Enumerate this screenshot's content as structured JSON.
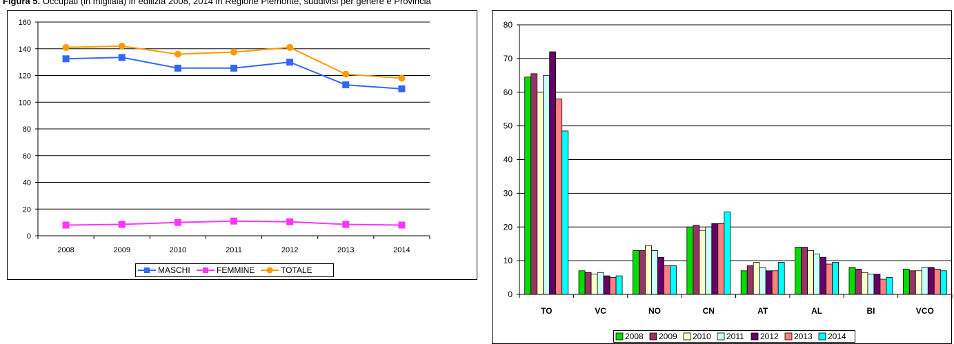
{
  "caption": {
    "label": "Figura 5.",
    "text": "Occupati (in migliaia) in edilizia 2008, 2014 in Regione Piemonte, suddivisi per genere e Provincia"
  },
  "chart_data": [
    {
      "type": "line",
      "title": "",
      "x": [
        "2008",
        "2009",
        "2010",
        "2011",
        "2012",
        "2013",
        "2014"
      ],
      "ylim": [
        0,
        160
      ],
      "yticks": [
        "0",
        "20",
        "40",
        "60",
        "80",
        "100",
        "120",
        "140",
        "160"
      ],
      "grid": true,
      "legend": "bottom",
      "series": [
        {
          "name": "MASCHI",
          "color": "#3366ff",
          "marker": "square",
          "values": [
            132.5,
            133.5,
            125.5,
            125.5,
            130,
            113,
            110
          ]
        },
        {
          "name": "FEMMINE",
          "color": "#ff33ff",
          "marker": "square",
          "values": [
            8,
            8.5,
            10,
            11,
            10.5,
            8.5,
            8
          ]
        },
        {
          "name": "TOTALE",
          "color": "#ff9900",
          "marker": "circle",
          "values": [
            141,
            142,
            136,
            137.5,
            141,
            121,
            118
          ]
        }
      ]
    },
    {
      "type": "bar",
      "title": "",
      "categories": [
        "TO",
        "VC",
        "NO",
        "CN",
        "AT",
        "AL",
        "BI",
        "VCO"
      ],
      "ylim": [
        0,
        80
      ],
      "yticks": [
        "0",
        "10",
        "20",
        "30",
        "40",
        "50",
        "60",
        "70",
        "80"
      ],
      "grid": true,
      "legend": "bottom",
      "series": [
        {
          "name": "2008",
          "color": "#00dd00",
          "values": [
            64.5,
            7,
            13,
            20,
            7,
            14,
            8,
            7.5
          ]
        },
        {
          "name": "2009",
          "color": "#993366",
          "values": [
            65.5,
            6.5,
            13,
            20.5,
            8.5,
            14,
            7.5,
            7
          ]
        },
        {
          "name": "2010",
          "color": "#ffffcc",
          "values": [
            60,
            6,
            14.5,
            19,
            9.5,
            13,
            6.5,
            7
          ]
        },
        {
          "name": "2011",
          "color": "#ccffff",
          "values": [
            65,
            6.5,
            13,
            20,
            8,
            12,
            6,
            8
          ]
        },
        {
          "name": "2012",
          "color": "#660066",
          "values": [
            72,
            5.5,
            11,
            21,
            7,
            11,
            6,
            8
          ]
        },
        {
          "name": "2013",
          "color": "#ff8080",
          "values": [
            58,
            5,
            8.5,
            21,
            7,
            9,
            4.5,
            7.5
          ]
        },
        {
          "name": "2014",
          "color": "#00ffff",
          "values": [
            48.5,
            5.5,
            8.5,
            24.5,
            9.5,
            9.5,
            5,
            7
          ]
        }
      ]
    }
  ]
}
